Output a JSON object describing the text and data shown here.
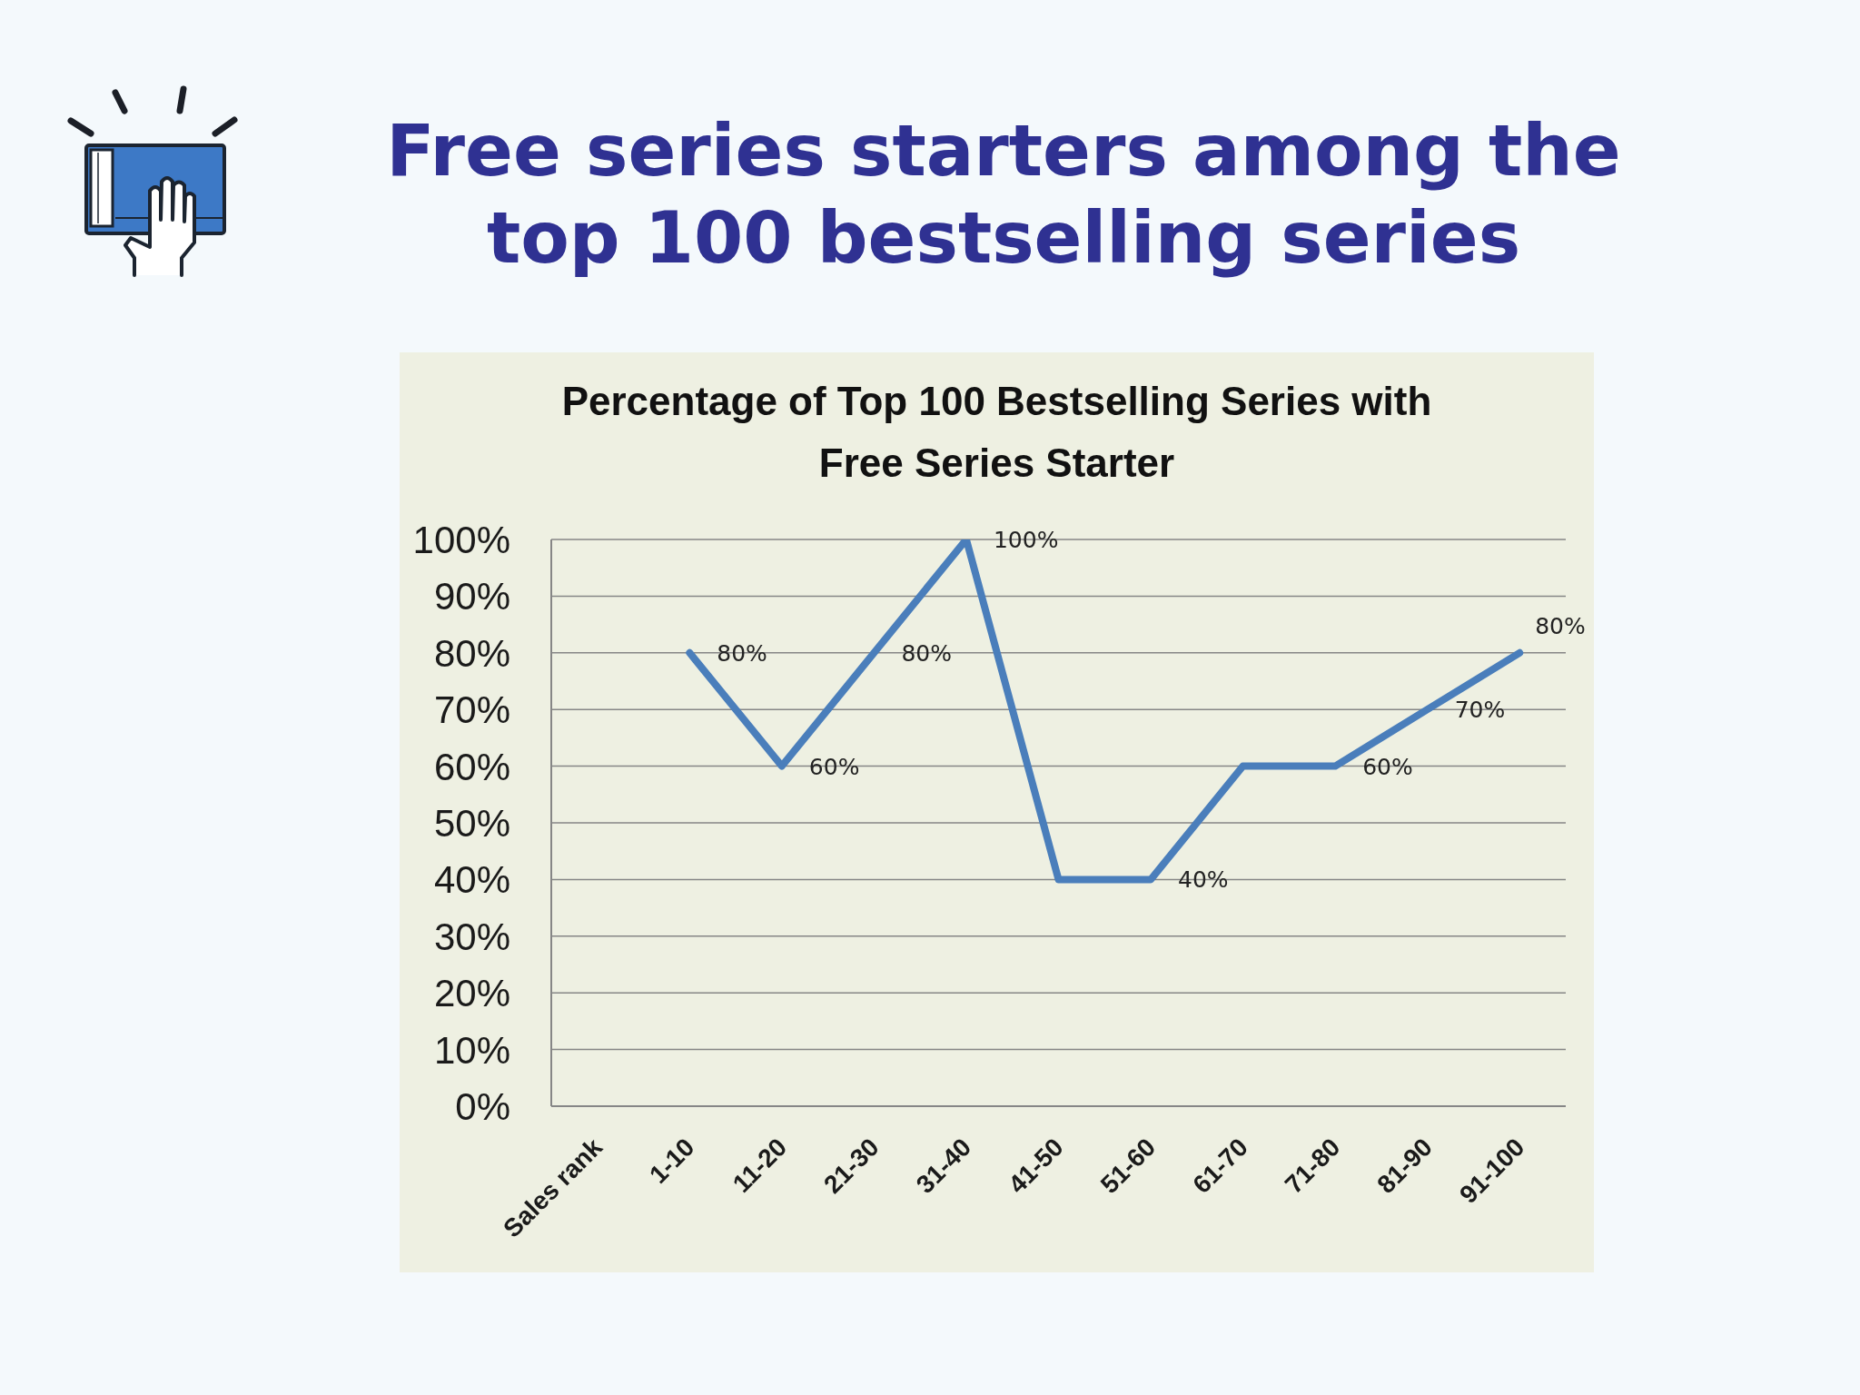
{
  "chart_data": {
    "type": "line",
    "title": "Free series starters among the top 100 bestselling series",
    "subtitle": "Percentage of Top 100 Bestselling Series with Free Series Starter",
    "categories": [
      "Sales rank",
      "1-10",
      "11-20",
      "21-30",
      "31-40",
      "41-50",
      "51-60",
      "61-70",
      "71-80",
      "81-90",
      "91-100"
    ],
    "values": [
      null,
      80,
      60,
      80,
      100,
      40,
      40,
      60,
      60,
      70,
      80
    ],
    "value_labels": [
      null,
      "80%",
      "60%",
      "80%",
      "100%",
      null,
      "40%",
      null,
      "60%",
      "70%",
      "80%"
    ],
    "color": "#4a7ebb",
    "ylim": [
      0,
      100
    ],
    "yticks": [
      {
        "value": 0,
        "label": "0%"
      },
      {
        "value": 10,
        "label": "10%"
      },
      {
        "value": 20,
        "label": "20%"
      },
      {
        "value": 30,
        "label": "30%"
      },
      {
        "value": 40,
        "label": "40%"
      },
      {
        "value": 50,
        "label": "50%"
      },
      {
        "value": 60,
        "label": "60%"
      },
      {
        "value": 70,
        "label": "70%"
      },
      {
        "value": 80,
        "label": "80%"
      },
      {
        "value": 90,
        "label": "90%"
      },
      {
        "value": 100,
        "label": "100%"
      }
    ],
    "grid": "y",
    "marker": "none",
    "line_style": "solid"
  }
}
